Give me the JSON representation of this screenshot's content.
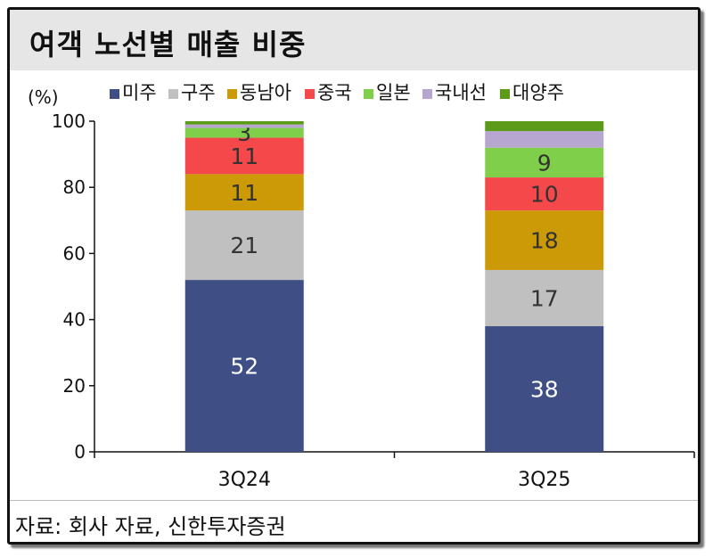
{
  "header": {
    "title": "여객 노선별 매출 비중"
  },
  "footer": {
    "source": "자료: 회사 자료, 신한투자증권"
  },
  "chart_data": {
    "type": "bar",
    "stacked": true,
    "ylabel": "(%)",
    "ylim": [
      0,
      100
    ],
    "yticks": [
      0,
      20,
      40,
      60,
      80,
      100
    ],
    "categories": [
      "3Q24",
      "3Q25"
    ],
    "legend_position": "top",
    "series": [
      {
        "name": "미주",
        "color": "#3f4f86",
        "values": [
          52,
          38
        ],
        "labels": [
          "52",
          "38"
        ]
      },
      {
        "name": "구주",
        "color": "#c0c0c0",
        "values": [
          21,
          17
        ],
        "labels": [
          "21",
          "17"
        ]
      },
      {
        "name": "동남아",
        "color": "#cc9a06",
        "values": [
          11,
          18
        ],
        "labels": [
          "11",
          "18"
        ]
      },
      {
        "name": "중국",
        "color": "#f4484b",
        "values": [
          11,
          10
        ],
        "labels": [
          "11",
          "10"
        ]
      },
      {
        "name": "일본",
        "color": "#80cf4a",
        "values": [
          3,
          9
        ],
        "labels": [
          "3",
          "9"
        ]
      },
      {
        "name": "국내선",
        "color": "#b7a6cf",
        "values": [
          1,
          5
        ],
        "labels": [
          "",
          ""
        ]
      },
      {
        "name": "대양주",
        "color": "#5c9a1a",
        "values": [
          1,
          3
        ],
        "labels": [
          "",
          ""
        ]
      }
    ]
  }
}
